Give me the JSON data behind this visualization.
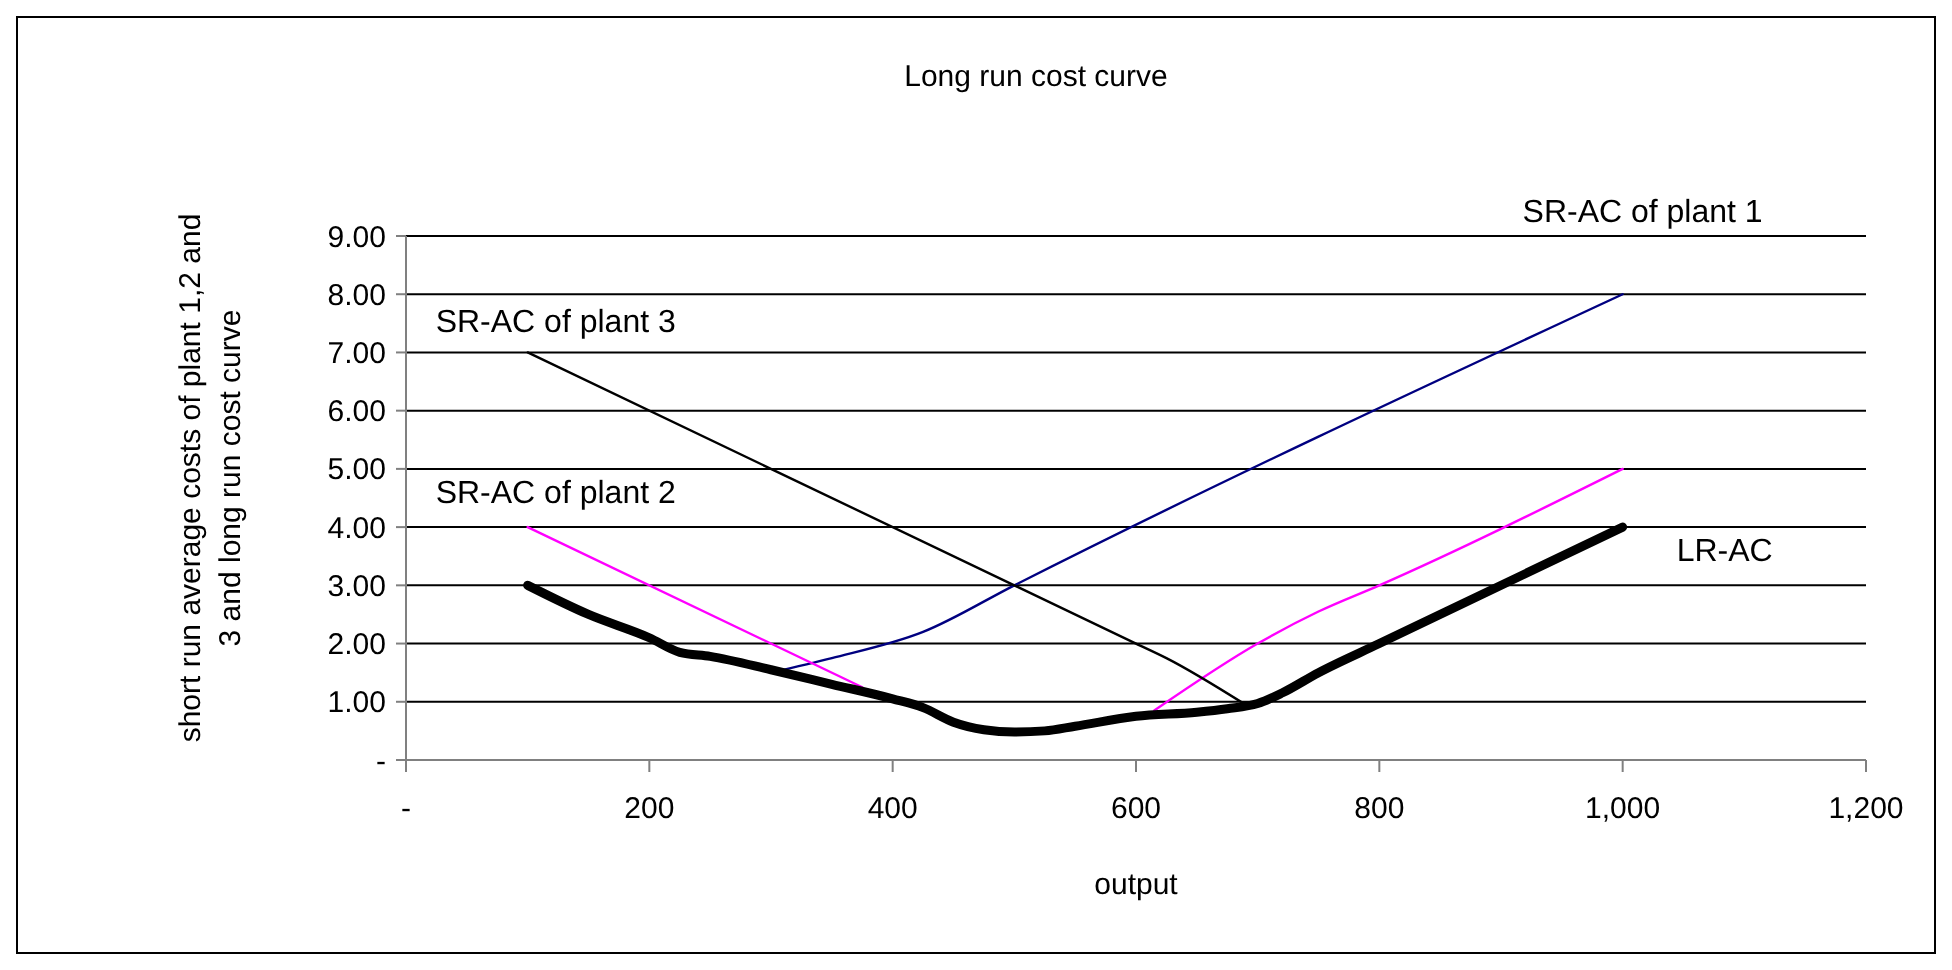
{
  "chart_data": {
    "type": "line",
    "title": "Long run cost curve",
    "xlabel": "output",
    "ylabel": "short run average costs of plant 1,2 and 3 and long run cost curve",
    "xlim": [
      0,
      1200
    ],
    "xticks": [
      {
        "value": 0,
        "label": "-"
      },
      200,
      400,
      600,
      800,
      {
        "value": 1000,
        "label": "1,000"
      },
      {
        "value": 1200,
        "label": "1,200"
      }
    ],
    "ylim": [
      0,
      9
    ],
    "yticks": [
      {
        "value": 0,
        "label": "-"
      },
      {
        "value": 1,
        "label": "1.00"
      },
      {
        "value": 2,
        "label": "2.00"
      },
      {
        "value": 3,
        "label": "3.00"
      },
      {
        "value": 4,
        "label": "4.00"
      },
      {
        "value": 5,
        "label": "5.00"
      },
      {
        "value": 6,
        "label": "6.00"
      },
      {
        "value": 7,
        "label": "7.00"
      },
      {
        "value": 8,
        "label": "8.00"
      },
      {
        "value": 9,
        "label": "9.00"
      }
    ],
    "grid": "y",
    "legend": false,
    "marker": "none",
    "series": [
      {
        "name": "SR-AC of plant 1",
        "color": "#000080",
        "x": [
          300,
          350,
          425,
          500,
          1000
        ],
        "values": [
          1.5,
          1.75,
          2.2,
          3.0,
          8.0
        ]
      },
      {
        "name": "SR-AC of plant 2",
        "color": "#ff00ff",
        "x": [
          100,
          375,
          400,
          600,
          615,
          700,
          750,
          800,
          1000
        ],
        "values": [
          4.0,
          1.25,
          null,
          null,
          0.85,
          2.0,
          2.55,
          3.0,
          5.0
        ]
      },
      {
        "name": "SR-AC of plant 3",
        "color": "#000000",
        "x": [
          100,
          500,
          600,
          625,
          690
        ],
        "values": [
          7.0,
          3.0,
          2.0,
          1.75,
          0.95
        ]
      },
      {
        "name": "LR-AC",
        "color": "#000000",
        "x": [
          100,
          150,
          200,
          225,
          250,
          300,
          350,
          400,
          425,
          450,
          475,
          500,
          525,
          550,
          600,
          650,
          675,
          700,
          720,
          750,
          800,
          1000
        ],
        "values": [
          3.0,
          2.5,
          2.1,
          1.85,
          1.78,
          1.55,
          1.3,
          1.05,
          0.9,
          0.65,
          0.52,
          0.48,
          0.5,
          0.58,
          0.75,
          0.82,
          0.88,
          0.97,
          1.15,
          1.5,
          2.0,
          4.0
        ]
      }
    ]
  }
}
